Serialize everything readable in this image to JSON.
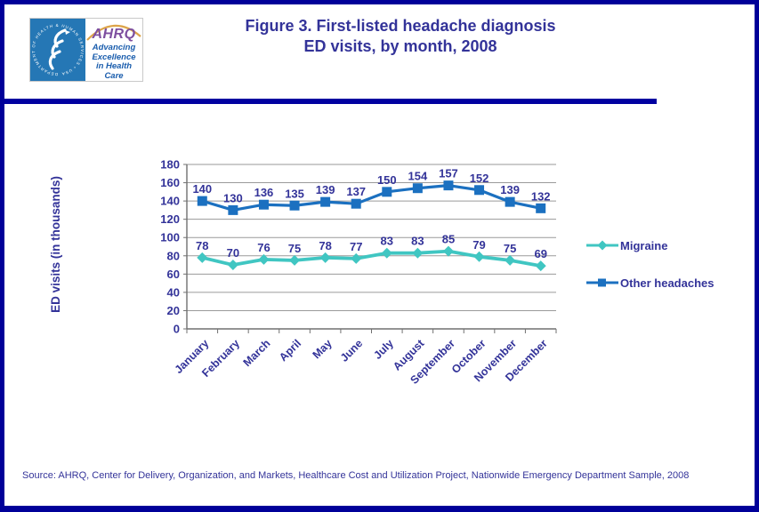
{
  "header": {
    "logo": {
      "org_abbrev": "AHRQ",
      "tagline": "Advancing Excellence in Health Care",
      "seal_text": "DEPARTMENT OF HEALTH & HUMAN SERVICES • USA"
    },
    "title_line1": "Figure 3. First-listed headache diagnosis",
    "title_line2": "ED visits, by month, 2008"
  },
  "chart_data": {
    "type": "line",
    "title": "Figure 3. First-listed headache diagnosis ED visits, by month, 2008",
    "categories": [
      "January",
      "February",
      "March",
      "April",
      "May",
      "June",
      "July",
      "August",
      "September",
      "October",
      "November",
      "December"
    ],
    "series": [
      {
        "name": "Migraine",
        "marker": "diamond",
        "color": "#40c6c2",
        "values": [
          78,
          70,
          76,
          75,
          78,
          77,
          83,
          83,
          85,
          79,
          75,
          69
        ]
      },
      {
        "name": "Other headaches",
        "marker": "square",
        "color": "#1b70c0",
        "values": [
          140,
          130,
          136,
          135,
          139,
          137,
          150,
          154,
          157,
          152,
          139,
          132
        ]
      }
    ],
    "xlabel": "",
    "ylabel": "ED visits  (in thousands)",
    "ylim": [
      0,
      180
    ],
    "ytick_step": 20,
    "grid": true,
    "data_labels": true,
    "legend_position": "right"
  },
  "footer": {
    "source": "Source: AHRQ,  Center for Delivery, Organization, and Markets, Healthcare Cost and Utilization Project, Nationwide Emergency Department Sample, 2008"
  },
  "colors": {
    "border_navy": "#000099",
    "text_navy": "#333399",
    "grid_grey": "#9a9a9a",
    "axis_grey": "#707070"
  }
}
